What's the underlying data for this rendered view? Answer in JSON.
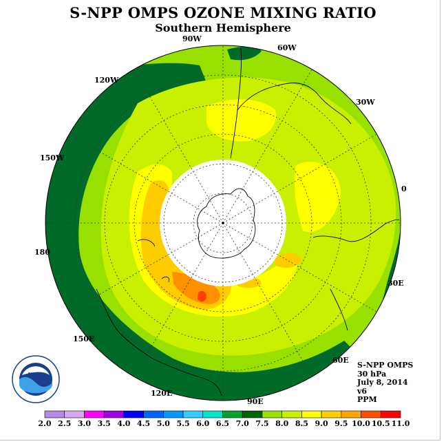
{
  "title": "S-NPP OMPS OZONE MIXING RATIO",
  "subtitle": "Southern Hemisphere",
  "longitude_labels": {
    "lon_90w": "90W",
    "lon_60w": "60W",
    "lon_30w": "30W",
    "lon_0": "0",
    "lon_30e": "30E",
    "lon_60e": "60E",
    "lon_90e": "90E",
    "lon_120e": "120E",
    "lon_150e": "150E",
    "lon_180": "180",
    "lon_150w": "150W",
    "lon_120w": "120W"
  },
  "info": {
    "instrument": "S-NPP OMPS",
    "level": "30 hPa",
    "date": "July 8, 2014",
    "version": "v6",
    "units": "PPM"
  },
  "logo_text": "NOAA",
  "colorbar": {
    "ticks": [
      "2.0",
      "2.5",
      "3.0",
      "3.5",
      "4.0",
      "4.5",
      "5.0",
      "5.5",
      "6.0",
      "6.5",
      "7.0",
      "7.5",
      "8.0",
      "8.5",
      "9.0",
      "9.5",
      "10.0",
      "10.5",
      "11.0"
    ],
    "colors": [
      "#b48ce6",
      "#d9a8f0",
      "#ff00ff",
      "#a000e0",
      "#0000ff",
      "#0066ff",
      "#0099ff",
      "#33ccff",
      "#00e5cc",
      "#00a030",
      "#006400",
      "#9be000",
      "#c8f000",
      "#ffff00",
      "#ffd000",
      "#ffa500",
      "#ff5000",
      "#ff0000",
      "#8b5a3c"
    ]
  },
  "map_colors": {
    "band_60": "#0f7a1f",
    "band_70": "#006a28",
    "band_75": "#98e000",
    "band_80": "#c8f000",
    "band_85": "#ffff00",
    "band_90": "#ffcc00",
    "band_95": "#ff9000",
    "band_100": "#ff4000",
    "no_data": "#ffffff"
  }
}
